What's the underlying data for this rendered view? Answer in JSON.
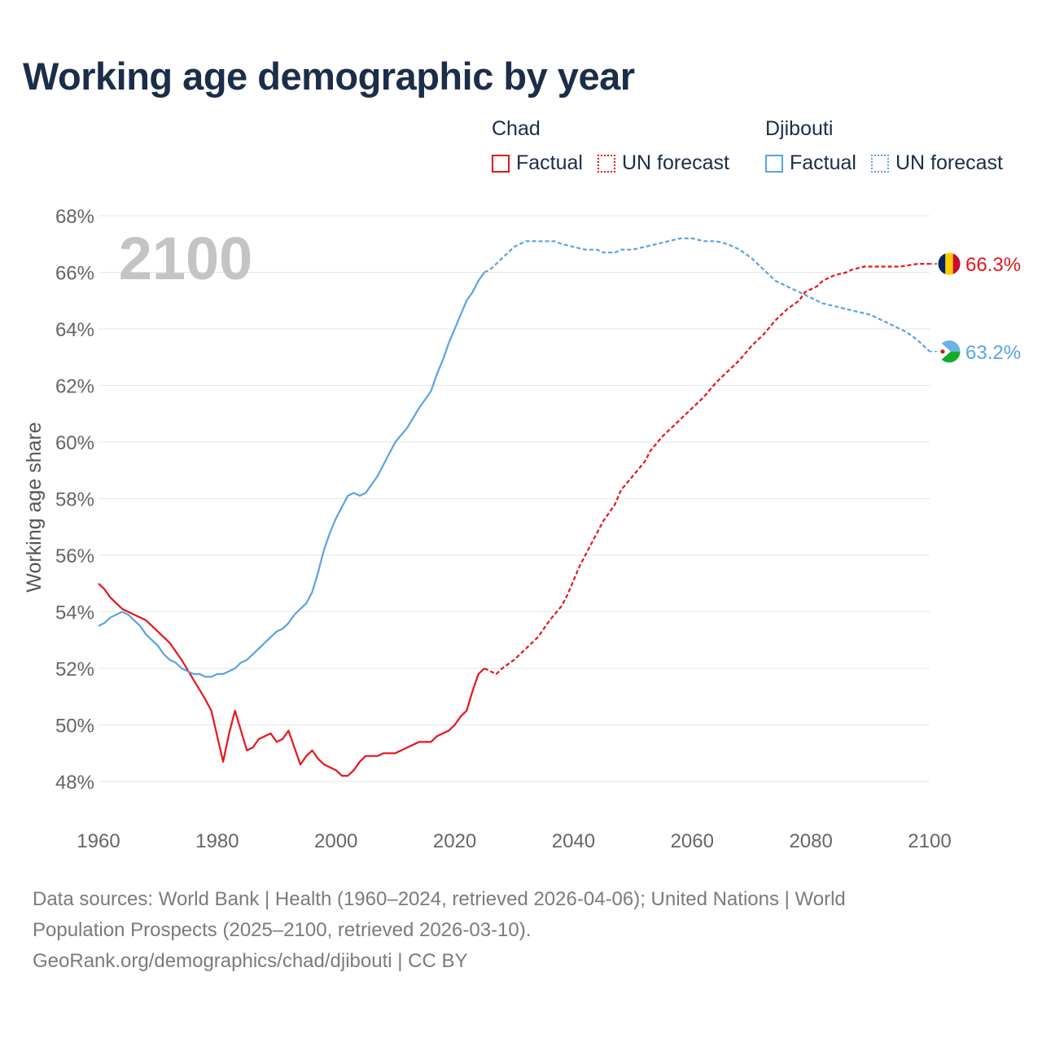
{
  "title": "Working age demographic by year",
  "legend": {
    "groups": [
      {
        "country": "Chad",
        "factual_label": "Factual",
        "forecast_label": "UN forecast",
        "color": "#e8141a"
      },
      {
        "country": "Djibouti",
        "factual_label": "Factual",
        "forecast_label": "UN forecast",
        "color": "#5aa3e3"
      }
    ]
  },
  "year_watermark": "2100",
  "footer": {
    "line1": "Data sources: World Bank | Health (1960–2024, retrieved 2026-04-06); United Nations | World",
    "line2": "Population Prospects (2025–2100, retrieved 2026-03-10).",
    "line3": "GeoRank.org/demographics/chad/djibouti | CC BY"
  },
  "chart_data": {
    "type": "line",
    "ylabel": "Working age share",
    "xlabel": "",
    "xlim": [
      1960,
      2100
    ],
    "ylim": [
      47,
      68.5
    ],
    "x_ticks": [
      1960,
      1980,
      2000,
      2020,
      2040,
      2060,
      2080,
      2100
    ],
    "y_ticks": [
      48,
      50,
      52,
      54,
      56,
      58,
      60,
      62,
      64,
      66,
      68
    ],
    "y_tick_suffix": "%",
    "forecast_start": 2025,
    "series": [
      {
        "name": "Chad",
        "color": "#e8141a",
        "end_label": "66.3%",
        "flag": "chad",
        "points": [
          [
            1960,
            55.0
          ],
          [
            1961,
            54.8
          ],
          [
            1962,
            54.5
          ],
          [
            1963,
            54.3
          ],
          [
            1964,
            54.1
          ],
          [
            1966,
            53.9
          ],
          [
            1968,
            53.7
          ],
          [
            1970,
            53.3
          ],
          [
            1972,
            52.9
          ],
          [
            1974,
            52.3
          ],
          [
            1976,
            51.6
          ],
          [
            1978,
            50.9
          ],
          [
            1979,
            50.5
          ],
          [
            1981,
            48.7
          ],
          [
            1982,
            49.7
          ],
          [
            1983,
            50.5
          ],
          [
            1985,
            49.1
          ],
          [
            1986,
            49.2
          ],
          [
            1987,
            49.5
          ],
          [
            1989,
            49.7
          ],
          [
            1990,
            49.4
          ],
          [
            1991,
            49.5
          ],
          [
            1992,
            49.8
          ],
          [
            1994,
            48.6
          ],
          [
            1995,
            48.9
          ],
          [
            1996,
            49.1
          ],
          [
            1997,
            48.8
          ],
          [
            1998,
            48.6
          ],
          [
            2000,
            48.4
          ],
          [
            2001,
            48.2
          ],
          [
            2002,
            48.2
          ],
          [
            2003,
            48.4
          ],
          [
            2004,
            48.7
          ],
          [
            2005,
            48.9
          ],
          [
            2007,
            48.9
          ],
          [
            2008,
            49.0
          ],
          [
            2010,
            49.0
          ],
          [
            2012,
            49.2
          ],
          [
            2014,
            49.4
          ],
          [
            2016,
            49.4
          ],
          [
            2017,
            49.6
          ],
          [
            2019,
            49.8
          ],
          [
            2020,
            50.0
          ],
          [
            2021,
            50.3
          ],
          [
            2022,
            50.5
          ],
          [
            2023,
            51.2
          ],
          [
            2024,
            51.8
          ],
          [
            2025,
            52.0
          ],
          [
            2026,
            51.9
          ],
          [
            2027,
            51.8
          ],
          [
            2028,
            52.0
          ],
          [
            2030,
            52.3
          ],
          [
            2032,
            52.7
          ],
          [
            2034,
            53.1
          ],
          [
            2036,
            53.7
          ],
          [
            2038,
            54.2
          ],
          [
            2039,
            54.6
          ],
          [
            2040,
            55.1
          ],
          [
            2041,
            55.6
          ],
          [
            2043,
            56.4
          ],
          [
            2045,
            57.2
          ],
          [
            2047,
            57.8
          ],
          [
            2048,
            58.3
          ],
          [
            2050,
            58.8
          ],
          [
            2052,
            59.3
          ],
          [
            2053,
            59.7
          ],
          [
            2055,
            60.2
          ],
          [
            2056,
            60.4
          ],
          [
            2058,
            60.8
          ],
          [
            2060,
            61.2
          ],
          [
            2062,
            61.6
          ],
          [
            2064,
            62.1
          ],
          [
            2066,
            62.5
          ],
          [
            2068,
            62.9
          ],
          [
            2070,
            63.4
          ],
          [
            2072,
            63.8
          ],
          [
            2074,
            64.3
          ],
          [
            2076,
            64.7
          ],
          [
            2078,
            65.0
          ],
          [
            2079,
            65.3
          ],
          [
            2081,
            65.5
          ],
          [
            2082,
            65.7
          ],
          [
            2084,
            65.9
          ],
          [
            2086,
            66.0
          ],
          [
            2087,
            66.1
          ],
          [
            2089,
            66.2
          ],
          [
            2091,
            66.2
          ],
          [
            2093,
            66.2
          ],
          [
            2095,
            66.2
          ],
          [
            2098,
            66.3
          ],
          [
            2100,
            66.3
          ]
        ]
      },
      {
        "name": "Djibouti",
        "color": "#5aa3e3",
        "end_label": "63.2%",
        "flag": "djibouti",
        "points": [
          [
            1960,
            53.5
          ],
          [
            1961,
            53.6
          ],
          [
            1962,
            53.8
          ],
          [
            1964,
            54.0
          ],
          [
            1965,
            53.9
          ],
          [
            1966,
            53.7
          ],
          [
            1967,
            53.5
          ],
          [
            1968,
            53.2
          ],
          [
            1970,
            52.8
          ],
          [
            1971,
            52.5
          ],
          [
            1972,
            52.3
          ],
          [
            1973,
            52.2
          ],
          [
            1974,
            52.0
          ],
          [
            1976,
            51.8
          ],
          [
            1977,
            51.8
          ],
          [
            1978,
            51.7
          ],
          [
            1979,
            51.7
          ],
          [
            1980,
            51.8
          ],
          [
            1981,
            51.8
          ],
          [
            1983,
            52.0
          ],
          [
            1984,
            52.2
          ],
          [
            1985,
            52.3
          ],
          [
            1987,
            52.7
          ],
          [
            1988,
            52.9
          ],
          [
            1990,
            53.3
          ],
          [
            1991,
            53.4
          ],
          [
            1992,
            53.6
          ],
          [
            1993,
            53.9
          ],
          [
            1995,
            54.3
          ],
          [
            1996,
            54.7
          ],
          [
            1997,
            55.4
          ],
          [
            1998,
            56.2
          ],
          [
            1999,
            56.8
          ],
          [
            2000,
            57.3
          ],
          [
            2001,
            57.7
          ],
          [
            2002,
            58.1
          ],
          [
            2003,
            58.2
          ],
          [
            2004,
            58.1
          ],
          [
            2005,
            58.2
          ],
          [
            2006,
            58.5
          ],
          [
            2007,
            58.8
          ],
          [
            2008,
            59.2
          ],
          [
            2009,
            59.6
          ],
          [
            2010,
            60.0
          ],
          [
            2012,
            60.5
          ],
          [
            2014,
            61.2
          ],
          [
            2015,
            61.5
          ],
          [
            2016,
            61.8
          ],
          [
            2017,
            62.4
          ],
          [
            2018,
            62.9
          ],
          [
            2019,
            63.5
          ],
          [
            2020,
            64.0
          ],
          [
            2021,
            64.5
          ],
          [
            2022,
            65.0
          ],
          [
            2023,
            65.3
          ],
          [
            2024,
            65.7
          ],
          [
            2025,
            66.0
          ],
          [
            2026,
            66.1
          ],
          [
            2027,
            66.3
          ],
          [
            2028,
            66.5
          ],
          [
            2029,
            66.7
          ],
          [
            2030,
            66.9
          ],
          [
            2031,
            67.0
          ],
          [
            2032,
            67.1
          ],
          [
            2035,
            67.1
          ],
          [
            2037,
            67.1
          ],
          [
            2038,
            67.0
          ],
          [
            2040,
            66.9
          ],
          [
            2042,
            66.8
          ],
          [
            2044,
            66.8
          ],
          [
            2045,
            66.7
          ],
          [
            2047,
            66.7
          ],
          [
            2048,
            66.8
          ],
          [
            2050,
            66.8
          ],
          [
            2052,
            66.9
          ],
          [
            2054,
            67.0
          ],
          [
            2056,
            67.1
          ],
          [
            2058,
            67.2
          ],
          [
            2060,
            67.2
          ],
          [
            2062,
            67.1
          ],
          [
            2064,
            67.1
          ],
          [
            2066,
            67.0
          ],
          [
            2068,
            66.8
          ],
          [
            2070,
            66.5
          ],
          [
            2072,
            66.1
          ],
          [
            2074,
            65.7
          ],
          [
            2076,
            65.5
          ],
          [
            2078,
            65.3
          ],
          [
            2080,
            65.1
          ],
          [
            2082,
            64.9
          ],
          [
            2084,
            64.8
          ],
          [
            2086,
            64.7
          ],
          [
            2088,
            64.6
          ],
          [
            2090,
            64.5
          ],
          [
            2092,
            64.3
          ],
          [
            2094,
            64.1
          ],
          [
            2096,
            63.9
          ],
          [
            2098,
            63.6
          ],
          [
            2099,
            63.4
          ],
          [
            2100,
            63.2
          ]
        ]
      }
    ]
  }
}
